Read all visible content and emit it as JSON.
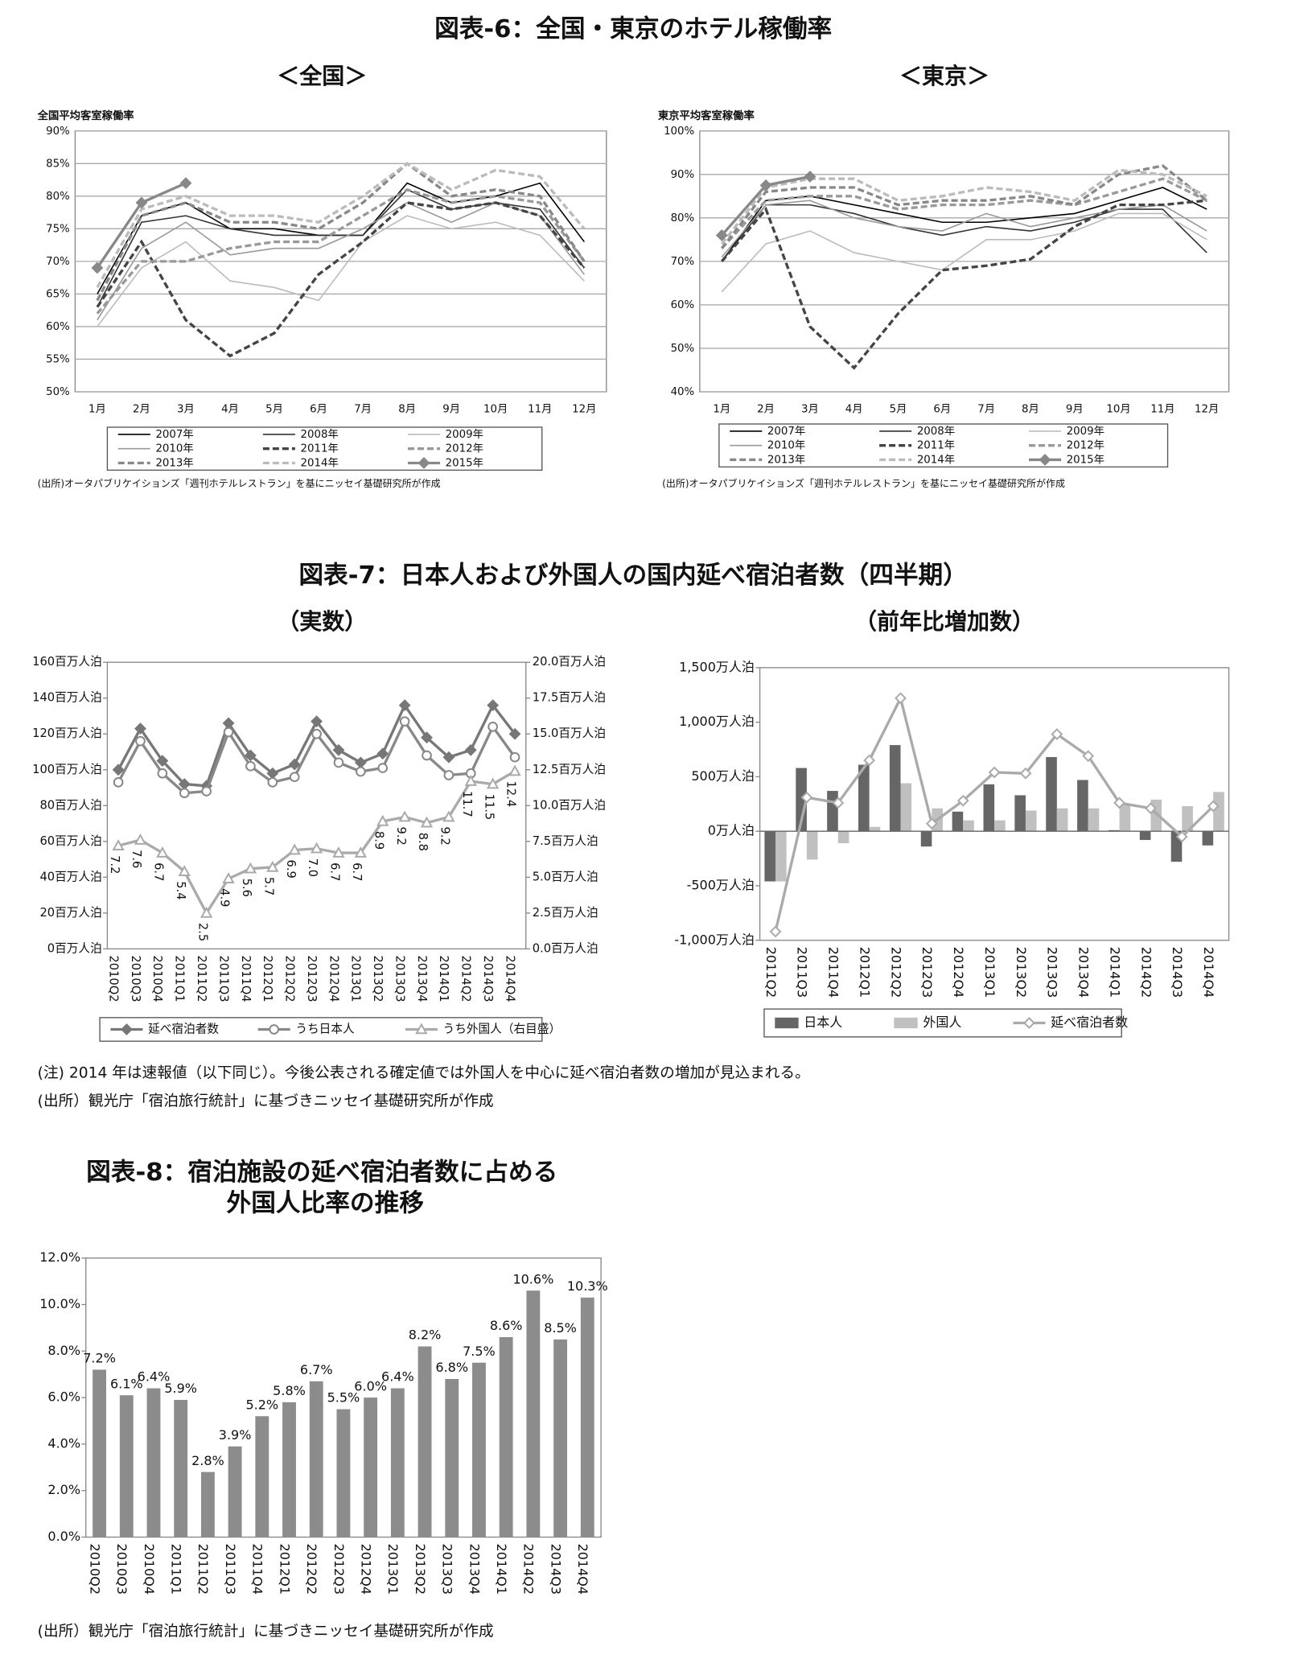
{
  "document": {
    "figure6_title": "図表-6：全国・東京のホテル稼働率",
    "figure6_source_national": "(出所)オータパブリケイションズ「週刊ホテルレストラン」を基にニッセイ基礎研究所が作成",
    "figure6_source_tokyo": "(出所)オータパブリケイションズ「週刊ホテルレストラン」を基にニッセイ基礎研究所が作成",
    "figure7_title": "図表-7：日本人および外国人の国内延べ宿泊者数（四半期）",
    "figure7_note": "(注) 2014 年は速報値（以下同じ）。今後公表される確定値では外国人を中心に延べ宿泊者数の増加が見込まれる。",
    "figure7_source": "(出所）観光庁「宿泊旅行統計」に基づきニッセイ基礎研究所が作成",
    "figure8_title": [
      "図表-8：宿泊施設の延べ宿泊者数に占める",
      "外国人比率の推移"
    ],
    "figure8_source": "(出所）観光庁「宿泊旅行統計」に基づきニッセイ基礎研究所が作成"
  },
  "chart_data": [
    {
      "type": "line",
      "title": "＜全国＞",
      "y_label": "全国平均客室稼働率",
      "grid": true,
      "categories": [
        "1月",
        "2月",
        "3月",
        "4月",
        "5月",
        "6月",
        "7月",
        "8月",
        "9月",
        "10月",
        "11月",
        "12月"
      ],
      "ylim": [
        50,
        90
      ],
      "yticks": [
        {
          "value": 50,
          "label": "50%"
        },
        {
          "value": 55,
          "label": "55%"
        },
        {
          "value": 60,
          "label": "60%"
        },
        {
          "value": 65,
          "label": "65%"
        },
        {
          "value": 70,
          "label": "70%"
        },
        {
          "value": 75,
          "label": "75%"
        },
        {
          "value": 80,
          "label": "80%"
        },
        {
          "value": 85,
          "label": "85%"
        },
        {
          "value": 90,
          "label": "90%"
        }
      ],
      "series": [
        {
          "name": "2007年",
          "color": "#000000",
          "dashed": false,
          "values": [
            65,
            77,
            79,
            75,
            75,
            74,
            74,
            82,
            79,
            80,
            82,
            73
          ]
        },
        {
          "name": "2008年",
          "color": "#333333",
          "dashed": false,
          "values": [
            63,
            76,
            77,
            75,
            74,
            74,
            74,
            81,
            78,
            79,
            78,
            69
          ]
        },
        {
          "name": "2009年",
          "color": "#bbbbbb",
          "dashed": false,
          "values": [
            60,
            69,
            73,
            67,
            66,
            64,
            73,
            77,
            75,
            76,
            74,
            67
          ]
        },
        {
          "name": "2010年",
          "color": "#999999",
          "dashed": false,
          "values": [
            61,
            72,
            76,
            71,
            72,
            72,
            75,
            79,
            76,
            79,
            77,
            68
          ]
        },
        {
          "name": "2011年",
          "color": "#444444",
          "dashed": true,
          "values": [
            63,
            73,
            61,
            55.5,
            59,
            68,
            73,
            79,
            78,
            79,
            77,
            69
          ]
        },
        {
          "name": "2012年",
          "color": "#999999",
          "dashed": true,
          "values": [
            62,
            70,
            70,
            72,
            73,
            73,
            77,
            81,
            79,
            80,
            79,
            70
          ]
        },
        {
          "name": "2013年",
          "color": "#888888",
          "dashed": true,
          "values": [
            64,
            77,
            79,
            76,
            76,
            75,
            79,
            85,
            80,
            81,
            80,
            70
          ]
        },
        {
          "name": "2014年",
          "color": "#bbbbbb",
          "dashed": true,
          "values": [
            66,
            78,
            80,
            77,
            77,
            76,
            80,
            85,
            81,
            84,
            83,
            75
          ]
        },
        {
          "name": "2015年",
          "color": "#888888",
          "dashed": false,
          "marker": "diamond",
          "marker_filled": true,
          "values": [
            69,
            79,
            82,
            null,
            null,
            null,
            null,
            null,
            null,
            null,
            null,
            null
          ]
        }
      ]
    },
    {
      "type": "line",
      "title": "＜東京＞",
      "y_label": "東京平均客室稼働率",
      "grid": true,
      "categories": [
        "1月",
        "2月",
        "3月",
        "4月",
        "5月",
        "6月",
        "7月",
        "8月",
        "9月",
        "10月",
        "11月",
        "12月"
      ],
      "ylim": [
        40,
        100
      ],
      "yticks": [
        {
          "value": 40,
          "label": "40%"
        },
        {
          "value": 50,
          "label": "50%"
        },
        {
          "value": 60,
          "label": "60%"
        },
        {
          "value": 70,
          "label": "70%"
        },
        {
          "value": 80,
          "label": "80%"
        },
        {
          "value": 90,
          "label": "90%"
        },
        {
          "value": 100,
          "label": "100%"
        }
      ],
      "series": [
        {
          "name": "2007年",
          "color": "#000000",
          "dashed": false,
          "values": [
            70,
            84,
            85,
            83,
            81,
            79,
            79,
            80,
            81,
            84,
            87,
            82
          ]
        },
        {
          "name": "2008年",
          "color": "#333333",
          "dashed": false,
          "values": [
            70,
            83,
            83,
            81,
            78,
            76,
            78,
            77,
            79,
            82,
            82,
            72
          ]
        },
        {
          "name": "2009年",
          "color": "#bbbbbb",
          "dashed": false,
          "values": [
            63,
            74,
            77,
            72,
            70,
            68,
            75,
            75,
            77,
            81,
            81,
            75
          ]
        },
        {
          "name": "2010年",
          "color": "#999999",
          "dashed": false,
          "values": [
            71,
            83,
            84,
            80,
            78,
            77,
            81,
            78,
            80,
            82,
            83,
            77
          ]
        },
        {
          "name": "2011年",
          "color": "#444444",
          "dashed": true,
          "values": [
            70,
            82,
            55,
            45.5,
            58,
            68,
            69,
            70.5,
            78,
            83,
            83,
            84
          ]
        },
        {
          "name": "2012年",
          "color": "#999999",
          "dashed": true,
          "values": [
            73,
            84,
            85,
            85,
            82,
            83,
            83,
            84,
            83,
            86,
            89,
            84
          ]
        },
        {
          "name": "2013年",
          "color": "#888888",
          "dashed": true,
          "values": [
            73,
            86,
            87,
            87,
            83,
            84,
            84,
            85,
            83,
            90,
            92,
            84
          ]
        },
        {
          "name": "2014年",
          "color": "#bbbbbb",
          "dashed": true,
          "values": [
            74,
            87,
            89,
            89,
            84,
            85,
            87,
            86,
            84,
            91,
            90,
            85
          ]
        },
        {
          "name": "2015年",
          "color": "#888888",
          "dashed": false,
          "marker": "diamond",
          "marker_filled": true,
          "values": [
            76,
            87.5,
            89.5,
            null,
            null,
            null,
            null,
            null,
            null,
            null,
            null,
            null
          ]
        }
      ]
    },
    {
      "type": "line",
      "title": "（実数）",
      "grid": false,
      "categories": [
        "2010Q2",
        "2010Q3",
        "2010Q4",
        "2011Q1",
        "2011Q2",
        "2011Q3",
        "2011Q4",
        "2012Q1",
        "2012Q2",
        "2012Q3",
        "2012Q4",
        "2013Q1",
        "2013Q2",
        "2013Q3",
        "2013Q4",
        "2014Q1",
        "2014Q2",
        "2014Q3",
        "2014Q4"
      ],
      "ylim": [
        0,
        160
      ],
      "yticks": [
        {
          "value": 0,
          "label": "0百万人泊"
        },
        {
          "value": 20,
          "label": "20百万人泊"
        },
        {
          "value": 40,
          "label": "40百万人泊"
        },
        {
          "value": 60,
          "label": "60百万人泊"
        },
        {
          "value": 80,
          "label": "80百万人泊"
        },
        {
          "value": 100,
          "label": "100百万人泊"
        },
        {
          "value": 120,
          "label": "120百万人泊"
        },
        {
          "value": 140,
          "label": "140百万人泊"
        },
        {
          "value": 160,
          "label": "160百万人泊"
        }
      ],
      "y2lim": [
        0,
        20
      ],
      "y2ticks": [
        {
          "value": 0,
          "label": "0.0百万人泊"
        },
        {
          "value": 2.5,
          "label": "2.5百万人泊"
        },
        {
          "value": 5,
          "label": "5.0百万人泊"
        },
        {
          "value": 7.5,
          "label": "7.5百万人泊"
        },
        {
          "value": 10,
          "label": "10.0百万人泊"
        },
        {
          "value": 12.5,
          "label": "12.5百万人泊"
        },
        {
          "value": 15,
          "label": "15.0百万人泊"
        },
        {
          "value": 17.5,
          "label": "17.5百万人泊"
        },
        {
          "value": 20,
          "label": "20.0百万人泊"
        }
      ],
      "series": [
        {
          "name": "延べ宿泊者数",
          "color": "#777777",
          "dashed": false,
          "marker": "diamond",
          "marker_filled": true,
          "values": [
            100,
            123,
            105,
            92,
            91,
            126,
            108,
            98,
            103,
            127,
            111,
            104,
            109,
            136,
            118,
            107,
            111,
            136,
            120
          ]
        },
        {
          "name": "うち日本人",
          "color": "#888888",
          "dashed": false,
          "marker": "circle",
          "marker_filled": false,
          "values": [
            93,
            116,
            98,
            87,
            88,
            121,
            102,
            93,
            96,
            120,
            104,
            99,
            101,
            127,
            108,
            97,
            98,
            124,
            107
          ]
        },
        {
          "name": "うち外国人（右目盛）",
          "color": "#aaaaaa",
          "dashed": false,
          "marker": "triangle",
          "marker_filled": false,
          "axis": "y2",
          "values": [
            7.2,
            7.6,
            6.7,
            5.4,
            2.5,
            4.9,
            5.6,
            5.7,
            6.9,
            7.0,
            6.7,
            6.7,
            8.9,
            9.2,
            8.8,
            9.2,
            11.7,
            11.5,
            12.4
          ],
          "value_labels": [
            "7.2",
            "7.6",
            "6.7",
            "5.4",
            "2.5",
            "4.9",
            "5.6",
            "5.7",
            "6.9",
            "7.0",
            "6.7",
            "6.7",
            "8.9",
            "9.2",
            "8.8",
            "9.2",
            "11.7",
            "11.5",
            "12.4"
          ]
        }
      ]
    },
    {
      "type": "bar",
      "title": "（前年比増加数）",
      "grid": false,
      "categories": [
        "2011Q2",
        "2011Q3",
        "2011Q4",
        "2012Q1",
        "2012Q2",
        "2012Q3",
        "2012Q4",
        "2013Q1",
        "2013Q2",
        "2013Q3",
        "2013Q4",
        "2014Q1",
        "2014Q2",
        "2014Q3",
        "2014Q4"
      ],
      "ylim": [
        -1000,
        1500
      ],
      "yticks": [
        {
          "value": -1000,
          "label": "-1,000万人泊"
        },
        {
          "value": -500,
          "label": "-500万人泊"
        },
        {
          "value": 0,
          "label": "0万人泊"
        },
        {
          "value": 500,
          "label": "500万人泊"
        },
        {
          "value": 1000,
          "label": "1,000万人泊"
        },
        {
          "value": 1500,
          "label": "1,500万人泊"
        }
      ],
      "series": [
        {
          "name": "日本人",
          "color": "#666666",
          "values": [
            -460,
            580,
            370,
            610,
            790,
            -140,
            180,
            430,
            330,
            680,
            470,
            10,
            -80,
            -280,
            -130
          ]
        },
        {
          "name": "外国人",
          "color": "#c0c0c0",
          "values": [
            -460,
            -260,
            -110,
            40,
            440,
            210,
            100,
            100,
            190,
            210,
            210,
            250,
            290,
            230,
            360
          ]
        },
        {
          "name": "延べ宿泊者数",
          "color": "#aaaaaa",
          "type": "line",
          "dashed": false,
          "marker": "diamond",
          "marker_filled": false,
          "values": [
            -920,
            310,
            260,
            650,
            1220,
            70,
            280,
            540,
            530,
            890,
            690,
            260,
            210,
            -50,
            230
          ]
        }
      ]
    },
    {
      "type": "bar",
      "grid": false,
      "color": "#8c8c8c",
      "categories": [
        "2010Q2",
        "2010Q3",
        "2010Q4",
        "2011Q1",
        "2011Q2",
        "2011Q3",
        "2011Q4",
        "2012Q1",
        "2012Q2",
        "2012Q3",
        "2012Q4",
        "2013Q1",
        "2013Q2",
        "2013Q3",
        "2013Q4",
        "2014Q1",
        "2014Q2",
        "2014Q3",
        "2014Q4"
      ],
      "ylim": [
        0,
        12
      ],
      "yticks": [
        {
          "value": 0,
          "label": "0.0%"
        },
        {
          "value": 2,
          "label": "2.0%"
        },
        {
          "value": 4,
          "label": "4.0%"
        },
        {
          "value": 6,
          "label": "6.0%"
        },
        {
          "value": 8,
          "label": "8.0%"
        },
        {
          "value": 10,
          "label": "10.0%"
        },
        {
          "value": 12,
          "label": "12.0%"
        }
      ],
      "values": [
        7.2,
        6.1,
        6.4,
        5.9,
        2.8,
        3.9,
        5.2,
        5.8,
        6.7,
        5.5,
        6.0,
        6.4,
        8.2,
        6.8,
        7.5,
        8.6,
        10.6,
        8.5,
        10.3
      ],
      "value_labels": [
        "7.2%",
        "6.1%",
        "6.4%",
        "5.9%",
        "2.8%",
        "3.9%",
        "5.2%",
        "5.8%",
        "6.7%",
        "5.5%",
        "6.0%",
        "6.4%",
        "8.2%",
        "6.8%",
        "7.5%",
        "8.6%",
        "10.6%",
        "8.5%",
        "10.3%"
      ]
    }
  ]
}
